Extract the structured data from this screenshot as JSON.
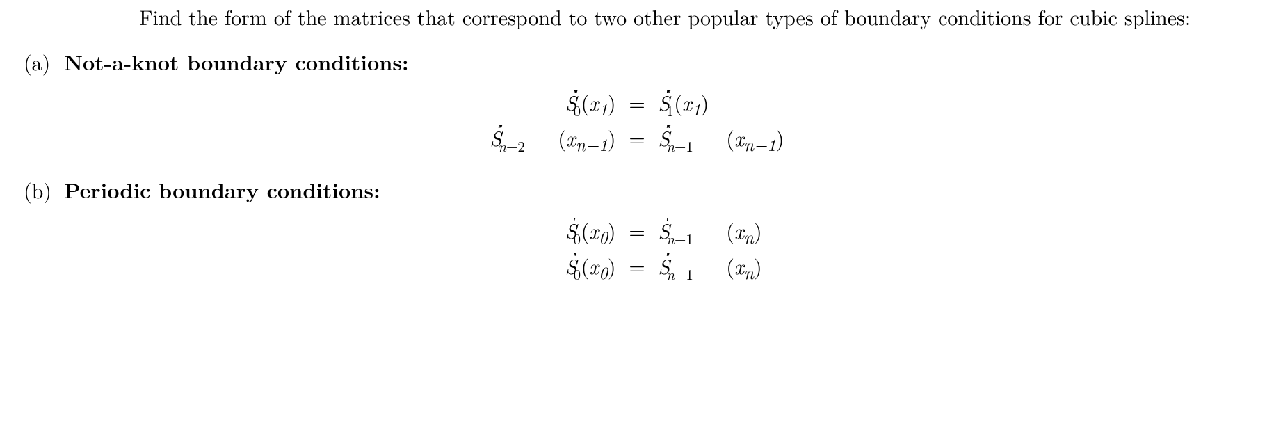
{
  "intro": "Find the form of the matrices that correspond to two other popular types of boundary conditions for cubic splines:",
  "parts": {
    "a": {
      "label": "(a)",
      "heading": "Not-a-knot boundary conditions:"
    },
    "b": {
      "label": "(b)",
      "heading": "Periodic boundary conditions:"
    }
  },
  "equations": {
    "a1": {
      "left": {
        "base": "S",
        "sub_html": "0",
        "primes": "′′′",
        "arg_html": "<span class=\"mi\">x</span><sub>1</sub>"
      },
      "right": {
        "base": "S",
        "sub_html": "1",
        "primes": "′′′",
        "arg_html": "<span class=\"mi\">x</span><sub>1</sub>"
      }
    },
    "a2": {
      "left": {
        "base": "S",
        "sub_html": "<span class=\"mi\">n</span>−2",
        "primes": "′′′",
        "arg_html": "<span class=\"mi\">x</span><sub><span class=\"mi\">n</span>−1</sub>"
      },
      "right": {
        "base": "S",
        "sub_html": "<span class=\"mi\">n</span>−1",
        "primes": "′′′",
        "arg_html": "<span class=\"mi\">x</span><sub><span class=\"mi\">n</span>−1</sub>"
      }
    },
    "b1": {
      "left": {
        "base": "S",
        "sub_html": "0",
        "primes": "′",
        "arg_html": "<span class=\"mi\">x</span><sub>0</sub>"
      },
      "right": {
        "base": "S",
        "sub_html": "<span class=\"mi\">n</span>−1",
        "primes": "′",
        "arg_html": "<span class=\"mi\">x</span><sub><span class=\"mi\">n</span></sub>"
      }
    },
    "b2": {
      "left": {
        "base": "S",
        "sub_html": "0",
        "primes": "′′",
        "arg_html": "<span class=\"mi\">x</span><sub>0</sub>"
      },
      "right": {
        "base": "S",
        "sub_html": "<span class=\"mi\">n</span>−1",
        "primes": "′′",
        "arg_html": "<span class=\"mi\">x</span><sub><span class=\"mi\">n</span></sub>"
      }
    }
  },
  "style": {
    "font_size_pt": 22,
    "text_color": "#000000",
    "background_color": "#ffffff"
  }
}
